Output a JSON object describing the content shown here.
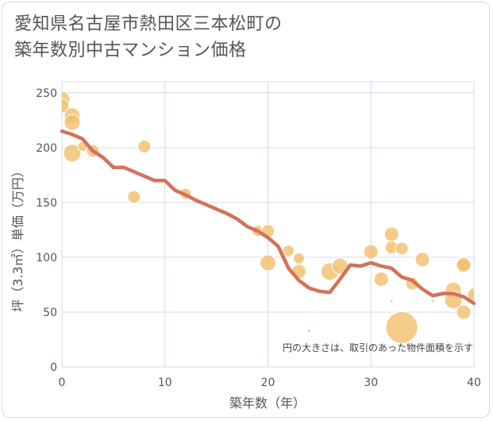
{
  "title_lines": [
    "愛知県名古屋市熱田区三本松町の",
    "築年数別中古マンション価格"
  ],
  "chart_data": {
    "type": "scatter",
    "title": "愛知県名古屋市熱田区三本松町の築年数別中古マンション価格",
    "xlabel": "築年数（年）",
    "ylabel": "坪（3.3㎡）単価（万円）",
    "xlim": [
      0,
      40
    ],
    "ylim": [
      0,
      260
    ],
    "x_ticks": [
      0,
      10,
      20,
      30,
      40
    ],
    "y_ticks": [
      0,
      50,
      100,
      150,
      200,
      250
    ],
    "grid": true,
    "note": "円の大きさは、取引のあった物件面積を示す",
    "colors": {
      "bubble": "#f3c06f",
      "trend": "#d4725a",
      "grid": "#cfdceb"
    },
    "points": [
      {
        "x": 0,
        "y": 244,
        "size": 10
      },
      {
        "x": 0,
        "y": 238,
        "size": 9
      },
      {
        "x": 1,
        "y": 229,
        "size": 10
      },
      {
        "x": 1,
        "y": 223,
        "size": 10
      },
      {
        "x": 1,
        "y": 195,
        "size": 11
      },
      {
        "x": 2,
        "y": 201,
        "size": 6
      },
      {
        "x": 3,
        "y": 197,
        "size": 8
      },
      {
        "x": 7,
        "y": 155,
        "size": 8
      },
      {
        "x": 8,
        "y": 201,
        "size": 8
      },
      {
        "x": 12,
        "y": 158,
        "size": 7
      },
      {
        "x": 19,
        "y": 124,
        "size": 7
      },
      {
        "x": 20,
        "y": 124,
        "size": 8
      },
      {
        "x": 20,
        "y": 95,
        "size": 10
      },
      {
        "x": 22,
        "y": 106,
        "size": 7
      },
      {
        "x": 23,
        "y": 99,
        "size": 7
      },
      {
        "x": 23,
        "y": 87,
        "size": 9
      },
      {
        "x": 24,
        "y": 33,
        "size": 2
      },
      {
        "x": 26,
        "y": 87,
        "size": 11
      },
      {
        "x": 27,
        "y": 92,
        "size": 10
      },
      {
        "x": 30,
        "y": 105,
        "size": 9
      },
      {
        "x": 31,
        "y": 80,
        "size": 9
      },
      {
        "x": 32,
        "y": 121,
        "size": 9
      },
      {
        "x": 32,
        "y": 109,
        "size": 8
      },
      {
        "x": 32,
        "y": 60,
        "size": 2
      },
      {
        "x": 33,
        "y": 108,
        "size": 8
      },
      {
        "x": 33,
        "y": 36,
        "size": 20
      },
      {
        "x": 34,
        "y": 76,
        "size": 8
      },
      {
        "x": 35,
        "y": 98,
        "size": 9
      },
      {
        "x": 36,
        "y": 60,
        "size": 2
      },
      {
        "x": 38,
        "y": 70,
        "size": 10
      },
      {
        "x": 38,
        "y": 61,
        "size": 11
      },
      {
        "x": 39,
        "y": 94,
        "size": 9
      },
      {
        "x": 39,
        "y": 93,
        "size": 9
      },
      {
        "x": 39,
        "y": 50,
        "size": 9
      },
      {
        "x": 40,
        "y": 66,
        "size": 8
      }
    ],
    "trend": {
      "x": [
        0,
        1,
        2,
        3,
        4,
        5,
        6,
        7,
        8,
        9,
        10,
        11,
        12,
        13,
        14,
        15,
        16,
        17,
        18,
        19,
        20,
        21,
        22,
        23,
        24,
        25,
        26,
        27,
        28,
        29,
        30,
        31,
        32,
        33,
        34,
        35,
        36,
        37,
        38,
        39,
        40
      ],
      "y": [
        215,
        212,
        208,
        197,
        191,
        182,
        182,
        178,
        174,
        170,
        170,
        161,
        157,
        152,
        148,
        144,
        140,
        135,
        128,
        124,
        118,
        110,
        90,
        79,
        72,
        69,
        68,
        80,
        93,
        92,
        95,
        92,
        90,
        82,
        79,
        71,
        65,
        67,
        67,
        64,
        58
      ]
    }
  }
}
